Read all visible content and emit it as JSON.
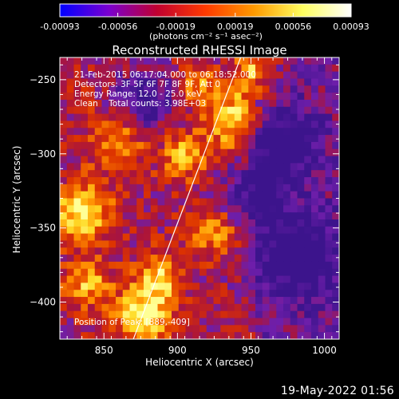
{
  "colorbar": {
    "ticks": [
      "-0.00093",
      "-0.00056",
      "-0.00019",
      "0.00019",
      "0.00056",
      "0.00093"
    ],
    "tick_values": [
      -0.00093,
      -0.00056,
      -0.00019,
      0.00019,
      0.00056,
      0.00093
    ],
    "range": [
      -0.00093,
      0.00093
    ],
    "units_label": "(photons cm⁻² s⁻¹ asec⁻²)",
    "colors": [
      "#0000ff",
      "#7a00d0",
      "#c00030",
      "#ff3a00",
      "#ff9a00",
      "#ffff60",
      "#ffffff"
    ]
  },
  "chart_data": {
    "type": "heatmap",
    "title": "Reconstructed RHESSI Image",
    "xlabel": "Heliocentric X (arcsec)",
    "ylabel": "Heliocentric Y (arcsec)",
    "xlim": [
      820,
      1010
    ],
    "ylim": [
      -425,
      -235
    ],
    "xticks": [
      850,
      900,
      950,
      1000
    ],
    "yticks": [
      -250,
      -300,
      -350,
      -400
    ],
    "xtick_labels": [
      "850",
      "900",
      "950",
      "1000"
    ],
    "ytick_labels": [
      "−250",
      "−300",
      "−350",
      "−400"
    ],
    "limb_line": [
      [
        870,
        -425
      ],
      [
        943,
        -235
      ]
    ],
    "peak": [
      889,
      -409
    ],
    "annotations": {
      "time_range": "21-Feb-2015 06:17:04.000 to 06:18:52.000",
      "detectors": "Detectors: 3F 5F 6F 7F 8F 9F, Att 0",
      "energy": "Energy Range: 12.0 - 25.0 keV",
      "clean": "Clean    Total counts: 3.98E+03",
      "peak_label": "Position of Peak: [889,-409]"
    }
  },
  "timestamp": "19-May-2022 01:56"
}
